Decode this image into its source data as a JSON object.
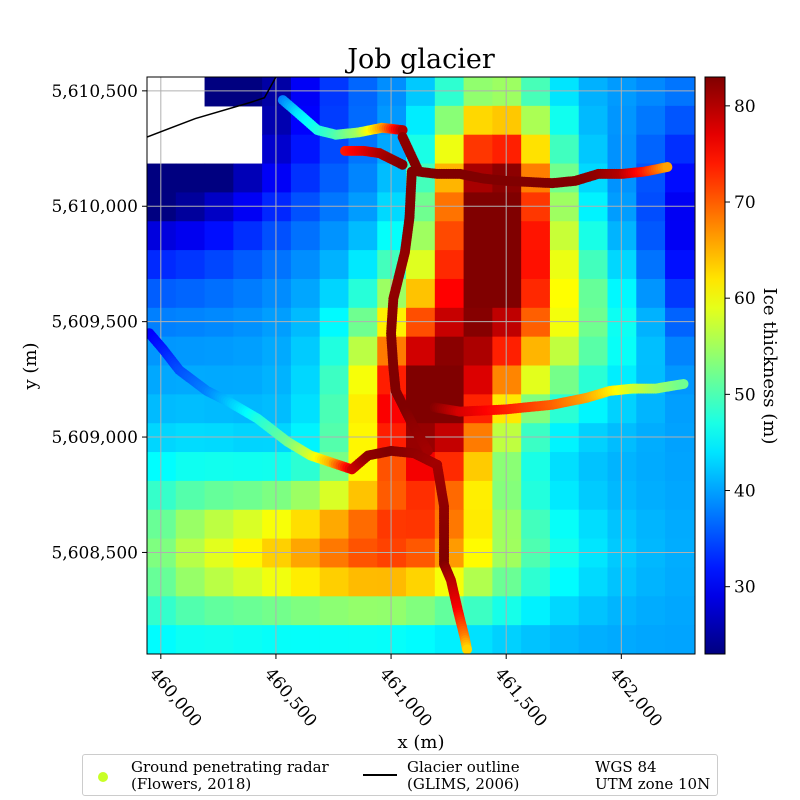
{
  "chart_data": {
    "type": "heatmap",
    "title": "Job glacier",
    "xlabel": "x (m)",
    "ylabel": "y (m)",
    "colorbar_label": "Ice thickness (m)",
    "colormap": "jet",
    "grid": true,
    "xlim": [
      459940,
      462320
    ],
    "ylim": [
      5608060,
      5610560
    ],
    "clim": [
      23,
      83
    ],
    "x_ticks": [
      460000,
      460500,
      461000,
      461500,
      462000
    ],
    "x_tick_labels": [
      "460,000",
      "460,500",
      "461,000",
      "461,500",
      "462,000"
    ],
    "y_ticks": [
      5608500,
      5609000,
      5609500,
      5610000,
      5610500
    ],
    "y_tick_labels": [
      "5,608,500",
      "5,609,000",
      "5,609,500",
      "5,610,000",
      "5,610,500"
    ],
    "colorbar_ticks": [
      30,
      40,
      50,
      60,
      70,
      80
    ],
    "colorbar_tick_labels": [
      "30",
      "40",
      "50",
      "60",
      "70",
      "80"
    ],
    "grid_cells": {
      "x_start": 459940,
      "y_start": 5608060,
      "cell_size": 125,
      "cols": 19,
      "rows": 20,
      "nodata_rows_from_top": [
        2,
        4,
        4,
        0,
        0,
        0,
        0,
        0,
        0,
        0,
        0,
        0,
        0,
        0,
        0,
        0,
        0,
        0,
        0,
        0
      ],
      "nodata_row_starts": [
        0,
        0,
        0,
        0,
        0,
        0,
        0,
        0,
        0,
        0,
        0,
        0,
        0,
        0,
        0,
        0,
        0,
        0,
        0,
        0
      ],
      "thickness": "modelled"
    },
    "legend": {
      "placement": "bottom",
      "entries": [
        {
          "label_line1": "Ground penetrating radar",
          "label_line2": "(Flowers, 2018)",
          "marker": "dot",
          "color": "#c8ff26"
        },
        {
          "label_line1": "Glacier outline",
          "label_line2": "(GLIMS, 2006)",
          "marker": "line",
          "color": "#000000"
        },
        {
          "label_line1": "WGS 84",
          "label_line2": "UTM zone 10N",
          "marker": "none"
        }
      ]
    },
    "outline": {
      "x": [
        459940,
        460150,
        460390,
        460450,
        460500
      ],
      "y": [
        5610300,
        5610380,
        5610450,
        5610470,
        5610560
      ]
    },
    "radar_lines": [
      {
        "x": [
          460530,
          460600,
          460680,
          460760,
          460860,
          460960,
          461050
        ],
        "y": [
          5610460,
          5610400,
          5610330,
          5610310,
          5610320,
          5610340,
          5610330
        ],
        "thickness": [
          38,
          44,
          47,
          50,
          55,
          66,
          80
        ]
      },
      {
        "x": [
          461050,
          461120,
          461200,
          461300,
          461400,
          461500,
          461600,
          461700,
          461800,
          461900,
          462000,
          462100,
          462200
        ],
        "y": [
          5610300,
          5610150,
          5610140,
          5610140,
          5610120,
          5610110,
          5610105,
          5610100,
          5610110,
          5610140,
          5610140,
          5610150,
          5610170
        ],
        "thickness": [
          82,
          83,
          83,
          83,
          83,
          83,
          83,
          83,
          83,
          82,
          80,
          74,
          66
        ]
      },
      {
        "x": [
          460800,
          460880,
          460950,
          461050
        ],
        "y": [
          5610240,
          5610240,
          5610230,
          5610180
        ],
        "thickness": [
          74,
          77,
          80,
          83
        ]
      },
      {
        "x": [
          461090,
          461080,
          461060,
          461010,
          461000,
          461010,
          461020,
          461060,
          461100,
          461160
        ],
        "y": [
          5610150,
          5609950,
          5609800,
          5609600,
          5609450,
          5609300,
          5609200,
          5609120,
          5609040,
          5608940
        ],
        "thickness": [
          83,
          83,
          82,
          82,
          83,
          83,
          83,
          83,
          82,
          81
        ]
      },
      {
        "x": [
          459950,
          460010,
          460080,
          460200,
          460300,
          460420,
          460550,
          460650,
          460740,
          460830,
          460900,
          461000,
          461100,
          461200
        ],
        "y": [
          5609450,
          5609380,
          5609290,
          5609200,
          5609150,
          5609080,
          5608980,
          5608920,
          5608890,
          5608860,
          5608920,
          5608940,
          5608930,
          5608880
        ],
        "thickness": [
          30,
          32,
          35,
          38,
          42,
          47,
          52,
          58,
          65,
          78,
          82,
          83,
          82,
          81
        ]
      },
      {
        "x": [
          461200,
          461230,
          461230,
          461260,
          461290,
          461320,
          461330
        ],
        "y": [
          5608880,
          5608700,
          5608450,
          5608380,
          5608250,
          5608130,
          5608080
        ],
        "thickness": [
          81,
          82,
          83,
          80,
          76,
          68,
          63
        ]
      },
      {
        "x": [
          461180,
          461300,
          461500,
          461700,
          461850,
          461950,
          462050,
          462150,
          462270
        ],
        "y": [
          5609130,
          5609110,
          5609120,
          5609140,
          5609170,
          5609200,
          5609210,
          5609210,
          5609230
        ],
        "thickness": [
          83,
          78,
          74,
          70,
          66,
          62,
          58,
          55,
          52
        ]
      }
    ]
  }
}
